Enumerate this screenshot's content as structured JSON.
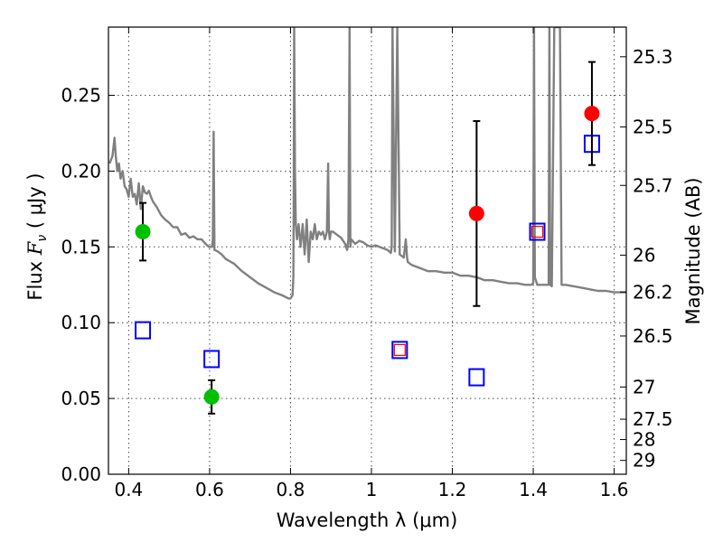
{
  "chart_data": {
    "type": "scatter",
    "xlabel": "Wavelength  λ (μm)",
    "ylabel": "Flux  F_ν  ( μJy )",
    "ylabel_parts": {
      "prefix": "Flux  ",
      "symbol": "F",
      "subscript": "ν",
      "unit": "  ( μJy )"
    },
    "y2label": "Magnitude (AB)",
    "xlim": [
      0.35,
      1.63
    ],
    "ylim": [
      0.0,
      0.295
    ],
    "grid": true,
    "x_ticks": [
      0.4,
      0.6,
      0.8,
      1.0,
      1.2,
      1.4,
      1.6
    ],
    "x_tick_labels": [
      "0.4",
      "0.6",
      "0.8",
      "1",
      "1.2",
      "1.4",
      "1.6"
    ],
    "y_ticks": [
      0.0,
      0.05,
      0.1,
      0.15,
      0.2,
      0.25
    ],
    "y_tick_labels": [
      "0.00",
      "0.05",
      "0.10",
      "0.15",
      "0.20",
      "0.25"
    ],
    "mag_ticks": [
      25.3,
      25.5,
      25.7,
      26,
      26.2,
      26.5,
      27,
      27.5,
      28,
      29
    ],
    "mag_tick_labels": [
      "25.3",
      "25.5",
      "25.7",
      "26",
      "26.2",
      "26.5",
      "27",
      "27.5",
      "28",
      "29"
    ],
    "colors": {
      "model": "#808080",
      "detection_green": "#00c000",
      "detection_red": "#ff0000",
      "model_square": "#0000ff",
      "inner_square": "#ff0000",
      "errorbar": "#000000"
    },
    "series": [
      {
        "kind": "line",
        "x": [
          0.353,
          0.36,
          0.365,
          0.368,
          0.372,
          0.376,
          0.38,
          0.385,
          0.39,
          0.395,
          0.4,
          0.405,
          0.41,
          0.415,
          0.42,
          0.425,
          0.43,
          0.435,
          0.44,
          0.445,
          0.45,
          0.455,
          0.46,
          0.47,
          0.48,
          0.49,
          0.5,
          0.51,
          0.52,
          0.53,
          0.54,
          0.55,
          0.56,
          0.57,
          0.58,
          0.59,
          0.598,
          0.602,
          0.606,
          0.608,
          0.61,
          0.612,
          0.62,
          0.63,
          0.64,
          0.66,
          0.68,
          0.7,
          0.72,
          0.74,
          0.76,
          0.78,
          0.795,
          0.8,
          0.805,
          0.807,
          0.808,
          0.809,
          0.811,
          0.813,
          0.816,
          0.82,
          0.825,
          0.83,
          0.835,
          0.84,
          0.845,
          0.85,
          0.855,
          0.86,
          0.865,
          0.87,
          0.875,
          0.88,
          0.885,
          0.89,
          0.893,
          0.895,
          0.897,
          0.9,
          0.905,
          0.915,
          0.925,
          0.935,
          0.94,
          0.943,
          0.946,
          0.948,
          0.95,
          0.96,
          0.97,
          0.98,
          0.99,
          1.0,
          1.01,
          1.02,
          1.03,
          1.04,
          1.048,
          1.05,
          1.052,
          1.058,
          1.064,
          1.07,
          1.08,
          1.085,
          1.088,
          1.09,
          1.1,
          1.12,
          1.14,
          1.16,
          1.18,
          1.2,
          1.22,
          1.24,
          1.26,
          1.28,
          1.3,
          1.32,
          1.34,
          1.36,
          1.38,
          1.395,
          1.4,
          1.402,
          1.404,
          1.41,
          1.42,
          1.43,
          1.438,
          1.44,
          1.442,
          1.446,
          1.452,
          1.458,
          1.462,
          1.466,
          1.47,
          1.48,
          1.5,
          1.52,
          1.54,
          1.56,
          1.58,
          1.6,
          1.63
        ],
        "y": [
          0.205,
          0.21,
          0.222,
          0.21,
          0.2,
          0.205,
          0.195,
          0.2,
          0.19,
          0.188,
          0.183,
          0.195,
          0.183,
          0.185,
          0.178,
          0.192,
          0.175,
          0.19,
          0.186,
          0.185,
          0.187,
          0.183,
          0.18,
          0.176,
          0.171,
          0.168,
          0.166,
          0.163,
          0.163,
          0.158,
          0.159,
          0.156,
          0.157,
          0.155,
          0.155,
          0.152,
          0.15,
          0.15,
          0.15,
          0.155,
          0.226,
          0.148,
          0.147,
          0.145,
          0.142,
          0.139,
          0.134,
          0.13,
          0.126,
          0.123,
          0.12,
          0.118,
          0.116,
          0.116,
          0.118,
          0.13,
          0.18,
          0.295,
          0.2,
          0.165,
          0.155,
          0.165,
          0.15,
          0.165,
          0.145,
          0.168,
          0.14,
          0.16,
          0.155,
          0.165,
          0.155,
          0.16,
          0.158,
          0.16,
          0.155,
          0.16,
          0.205,
          0.16,
          0.155,
          0.16,
          0.16,
          0.158,
          0.156,
          0.152,
          0.148,
          0.155,
          0.295,
          0.15,
          0.155,
          0.152,
          0.154,
          0.153,
          0.151,
          0.15,
          0.151,
          0.15,
          0.149,
          0.148,
          0.146,
          0.15,
          0.295,
          0.147,
          0.295,
          0.145,
          0.143,
          0.155,
          0.143,
          0.14,
          0.138,
          0.136,
          0.134,
          0.134,
          0.133,
          0.133,
          0.131,
          0.131,
          0.13,
          0.128,
          0.128,
          0.127,
          0.126,
          0.126,
          0.125,
          0.125,
          0.126,
          0.295,
          0.13,
          0.125,
          0.125,
          0.125,
          0.125,
          0.295,
          0.125,
          0.124,
          0.295,
          0.295,
          0.295,
          0.295,
          0.125,
          0.125,
          0.124,
          0.123,
          0.122,
          0.121,
          0.121,
          0.12,
          0.12
        ]
      },
      {
        "kind": "detection",
        "color": "green",
        "x": [
          0.435,
          0.605
        ],
        "y": [
          0.16,
          0.051
        ],
        "yerr": [
          0.019,
          0.011
        ]
      },
      {
        "kind": "detection",
        "color": "red",
        "x": [
          1.26,
          1.545
        ],
        "y": [
          0.172,
          0.238
        ],
        "yerr": [
          0.061,
          0.034
        ]
      },
      {
        "kind": "model_photometry",
        "marker": "open_square",
        "x": [
          0.435,
          0.605,
          1.07,
          1.26,
          1.41,
          1.545
        ],
        "y": [
          0.095,
          0.076,
          0.082,
          0.064,
          0.16,
          0.218
        ],
        "inner_square": [
          false,
          false,
          true,
          false,
          true,
          false
        ]
      }
    ]
  }
}
